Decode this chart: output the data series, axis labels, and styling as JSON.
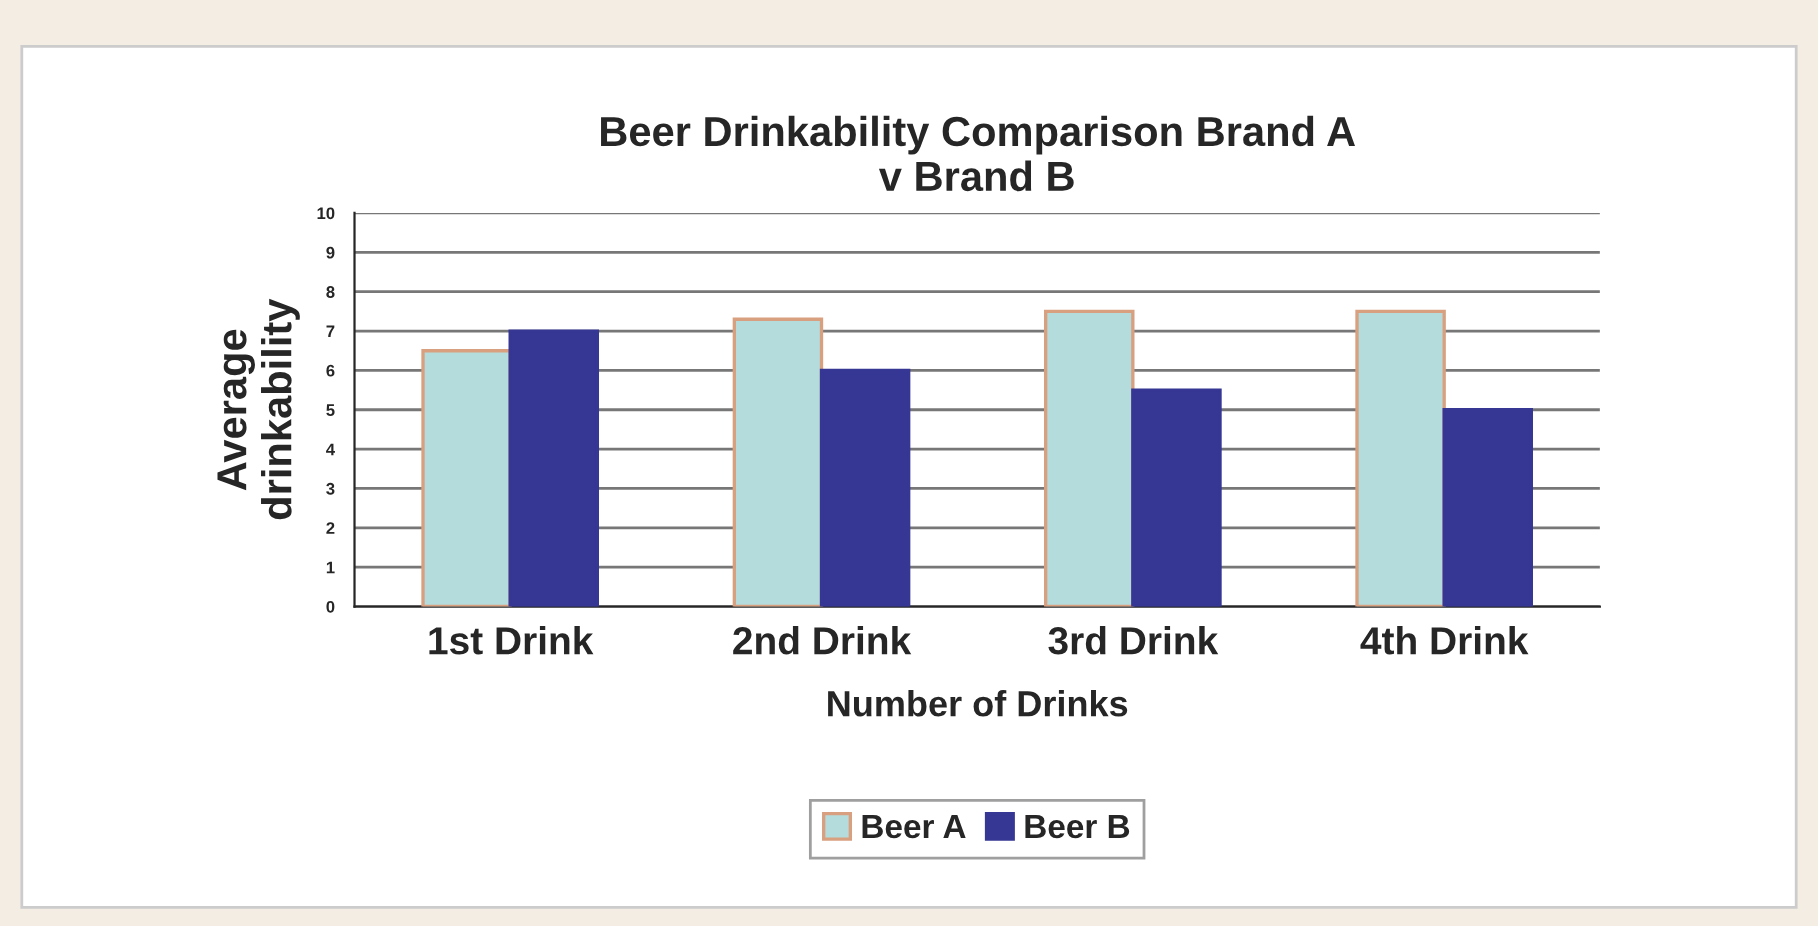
{
  "chart_data": {
    "type": "bar",
    "title": "Beer Drinkability Comparison Brand A\nv Brand B",
    "xlabel": "Number of Drinks",
    "ylabel": "Average\ndrinkability",
    "categories": [
      "1st Drink",
      "2nd Drink",
      "3rd Drink",
      "4th Drink"
    ],
    "series": [
      {
        "name": "Beer A",
        "color": "#b4dcdc",
        "values": [
          6.5,
          7.3,
          7.5,
          7.5
        ]
      },
      {
        "name": "Beer B",
        "color": "#363694",
        "values": [
          7,
          6,
          5.5,
          5
        ]
      }
    ],
    "ylim": [
      0,
      10
    ],
    "yticks": [
      0,
      1,
      2,
      3,
      4,
      5,
      6,
      7,
      8,
      9,
      10
    ],
    "grid": "y",
    "legend": "bottom"
  }
}
